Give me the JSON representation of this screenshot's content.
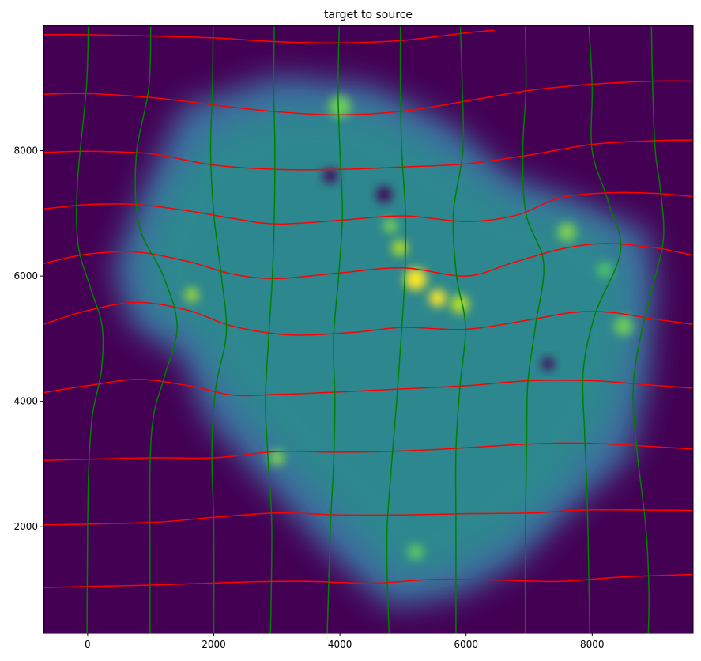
{
  "chart_data": {
    "type": "heatmap",
    "title": "target to source",
    "xlabel": "",
    "ylabel": "",
    "xlim": [
      -700,
      9600
    ],
    "ylim": [
      300,
      10000
    ],
    "xticks": [
      0,
      2000,
      4000,
      6000,
      8000
    ],
    "yticks": [
      2000,
      4000,
      6000,
      8000
    ],
    "xtick_labels": [
      "0",
      "2000",
      "4000",
      "6000",
      "8000"
    ],
    "ytick_labels": [
      "2000",
      "4000",
      "6000",
      "8000"
    ],
    "grid": false,
    "legend": "none",
    "colormap": "viridis",
    "colors": {
      "background": "#440154",
      "tissue": "#2b8c8c",
      "tissue_edge": "#3e6fa0",
      "hotspot": "#fde725",
      "green_lines": "#008000",
      "red_lines": "#ff0000"
    },
    "red_lines": [
      {
        "points": [
          [
            -700,
            1030
          ],
          [
            1000,
            1070
          ],
          [
            2500,
            1120
          ],
          [
            3500,
            1130
          ],
          [
            4500,
            1100
          ],
          [
            5500,
            1160
          ],
          [
            6500,
            1150
          ],
          [
            7500,
            1130
          ],
          [
            8500,
            1200
          ],
          [
            9600,
            1240
          ]
        ]
      },
      {
        "points": [
          [
            -700,
            2030
          ],
          [
            1000,
            2070
          ],
          [
            2000,
            2150
          ],
          [
            3000,
            2220
          ],
          [
            4000,
            2190
          ],
          [
            5000,
            2190
          ],
          [
            6000,
            2210
          ],
          [
            7000,
            2220
          ],
          [
            8000,
            2270
          ],
          [
            9600,
            2260
          ]
        ]
      },
      {
        "points": [
          [
            -700,
            3060
          ],
          [
            1000,
            3100
          ],
          [
            2000,
            3100
          ],
          [
            3000,
            3200
          ],
          [
            4000,
            3190
          ],
          [
            5000,
            3210
          ],
          [
            6000,
            3260
          ],
          [
            7000,
            3320
          ],
          [
            8000,
            3330
          ],
          [
            9600,
            3240
          ]
        ]
      },
      {
        "points": [
          [
            -700,
            4140
          ],
          [
            0,
            4250
          ],
          [
            800,
            4350
          ],
          [
            1600,
            4250
          ],
          [
            2300,
            4100
          ],
          [
            3000,
            4110
          ],
          [
            4000,
            4150
          ],
          [
            5000,
            4200
          ],
          [
            6000,
            4250
          ],
          [
            7000,
            4330
          ],
          [
            8000,
            4330
          ],
          [
            8700,
            4280
          ],
          [
            9600,
            4210
          ]
        ]
      },
      {
        "points": [
          [
            -700,
            5230
          ],
          [
            0,
            5450
          ],
          [
            800,
            5580
          ],
          [
            1600,
            5450
          ],
          [
            2300,
            5200
          ],
          [
            3200,
            5060
          ],
          [
            4200,
            5100
          ],
          [
            5000,
            5180
          ],
          [
            6000,
            5150
          ],
          [
            7000,
            5300
          ],
          [
            7700,
            5420
          ],
          [
            8300,
            5420
          ],
          [
            9000,
            5310
          ],
          [
            9600,
            5230
          ]
        ]
      },
      {
        "points": [
          [
            -700,
            6200
          ],
          [
            0,
            6350
          ],
          [
            800,
            6380
          ],
          [
            1600,
            6230
          ],
          [
            2300,
            6030
          ],
          [
            3000,
            5960
          ],
          [
            4000,
            6050
          ],
          [
            5000,
            6130
          ],
          [
            6000,
            6000
          ],
          [
            6700,
            6200
          ],
          [
            7500,
            6430
          ],
          [
            8200,
            6520
          ],
          [
            9000,
            6450
          ],
          [
            9600,
            6330
          ]
        ]
      },
      {
        "points": [
          [
            -700,
            7070
          ],
          [
            0,
            7140
          ],
          [
            800,
            7140
          ],
          [
            1600,
            7040
          ],
          [
            2300,
            6920
          ],
          [
            3000,
            6830
          ],
          [
            4000,
            6890
          ],
          [
            5000,
            6960
          ],
          [
            6000,
            6870
          ],
          [
            6800,
            6970
          ],
          [
            7500,
            7250
          ],
          [
            8300,
            7330
          ],
          [
            9000,
            7320
          ],
          [
            9600,
            7270
          ]
        ]
      },
      {
        "points": [
          [
            -700,
            7970
          ],
          [
            0,
            7990
          ],
          [
            1000,
            7950
          ],
          [
            2000,
            7770
          ],
          [
            3000,
            7700
          ],
          [
            4000,
            7700
          ],
          [
            5000,
            7740
          ],
          [
            6000,
            7790
          ],
          [
            7000,
            7930
          ],
          [
            8000,
            8100
          ],
          [
            9000,
            8160
          ],
          [
            9600,
            8170
          ]
        ]
      },
      {
        "points": [
          [
            -700,
            8900
          ],
          [
            0,
            8910
          ],
          [
            1000,
            8850
          ],
          [
            2000,
            8730
          ],
          [
            3000,
            8620
          ],
          [
            4000,
            8570
          ],
          [
            5000,
            8630
          ],
          [
            6000,
            8790
          ],
          [
            7000,
            8960
          ],
          [
            8000,
            9060
          ],
          [
            9000,
            9110
          ],
          [
            9600,
            9110
          ]
        ]
      },
      {
        "points": [
          [
            -700,
            9850
          ],
          [
            0,
            9850
          ],
          [
            1000,
            9830
          ],
          [
            2000,
            9800
          ],
          [
            3000,
            9740
          ],
          [
            4000,
            9720
          ],
          [
            5000,
            9760
          ],
          [
            6000,
            9880
          ],
          [
            6450,
            9920
          ]
        ]
      }
    ],
    "green_lines": [
      {
        "points": [
          [
            10,
            9980
          ],
          [
            -20,
            9000
          ],
          [
            -160,
            7500
          ],
          [
            -150,
            6500
          ],
          [
            50,
            5800
          ],
          [
            230,
            5200
          ],
          [
            220,
            4500
          ],
          [
            80,
            3800
          ],
          [
            20,
            3000
          ],
          [
            0,
            2000
          ],
          [
            -10,
            300
          ]
        ]
      },
      {
        "points": [
          [
            1000,
            9980
          ],
          [
            970,
            9000
          ],
          [
            770,
            7900
          ],
          [
            820,
            6800
          ],
          [
            1200,
            6000
          ],
          [
            1420,
            5200
          ],
          [
            1220,
            4400
          ],
          [
            1050,
            3800
          ],
          [
            990,
            3000
          ],
          [
            990,
            1500
          ],
          [
            990,
            300
          ]
        ]
      },
      {
        "points": [
          [
            1990,
            9980
          ],
          [
            1980,
            9000
          ],
          [
            1950,
            8000
          ],
          [
            2000,
            7000
          ],
          [
            2120,
            6000
          ],
          [
            2200,
            5100
          ],
          [
            2030,
            4200
          ],
          [
            1970,
            3200
          ],
          [
            2000,
            2000
          ],
          [
            2000,
            300
          ]
        ]
      },
      {
        "points": [
          [
            2960,
            9980
          ],
          [
            2950,
            9000
          ],
          [
            2970,
            8000
          ],
          [
            2960,
            7000
          ],
          [
            2930,
            6000
          ],
          [
            2870,
            5000
          ],
          [
            2820,
            4000
          ],
          [
            2860,
            3100
          ],
          [
            2920,
            2000
          ],
          [
            2900,
            300
          ]
        ]
      },
      {
        "points": [
          [
            3990,
            9980
          ],
          [
            3970,
            9000
          ],
          [
            4000,
            8000
          ],
          [
            4040,
            7000
          ],
          [
            3980,
            6000
          ],
          [
            3900,
            5000
          ],
          [
            3920,
            4000
          ],
          [
            3900,
            3000
          ],
          [
            3850,
            2000
          ],
          [
            3800,
            300
          ]
        ]
      },
      {
        "points": [
          [
            4960,
            9980
          ],
          [
            4960,
            9000
          ],
          [
            4980,
            8000
          ],
          [
            5040,
            7000
          ],
          [
            5030,
            6000
          ],
          [
            4970,
            5000
          ],
          [
            4900,
            4000
          ],
          [
            4820,
            3000
          ],
          [
            4750,
            2000
          ],
          [
            4750,
            1200
          ],
          [
            4780,
            300
          ]
        ]
      },
      {
        "points": [
          [
            5910,
            9980
          ],
          [
            5940,
            9000
          ],
          [
            5950,
            8000
          ],
          [
            5800,
            7000
          ],
          [
            5850,
            6000
          ],
          [
            5990,
            5200
          ],
          [
            5900,
            4200
          ],
          [
            5840,
            3200
          ],
          [
            5840,
            2000
          ],
          [
            5840,
            300
          ]
        ]
      },
      {
        "points": [
          [
            6940,
            9980
          ],
          [
            6950,
            9000
          ],
          [
            6900,
            8000
          ],
          [
            6950,
            7000
          ],
          [
            7230,
            6200
          ],
          [
            7100,
            5200
          ],
          [
            6980,
            4300
          ],
          [
            6960,
            3300
          ],
          [
            6940,
            2000
          ],
          [
            6940,
            300
          ]
        ]
      },
      {
        "points": [
          [
            7950,
            9980
          ],
          [
            8000,
            9000
          ],
          [
            8000,
            8000
          ],
          [
            8250,
            7200
          ],
          [
            8450,
            6400
          ],
          [
            8050,
            5400
          ],
          [
            7860,
            4500
          ],
          [
            7880,
            3500
          ],
          [
            7920,
            2500
          ],
          [
            7950,
            1000
          ],
          [
            7960,
            300
          ]
        ]
      },
      {
        "points": [
          [
            8940,
            9980
          ],
          [
            8960,
            9000
          ],
          [
            9000,
            8000
          ],
          [
            9080,
            7400
          ],
          [
            9130,
            6600
          ],
          [
            8950,
            5800
          ],
          [
            8760,
            5000
          ],
          [
            8650,
            4200
          ],
          [
            8700,
            3300
          ],
          [
            8850,
            2000
          ],
          [
            8900,
            1000
          ],
          [
            8890,
            300
          ]
        ]
      }
    ]
  }
}
